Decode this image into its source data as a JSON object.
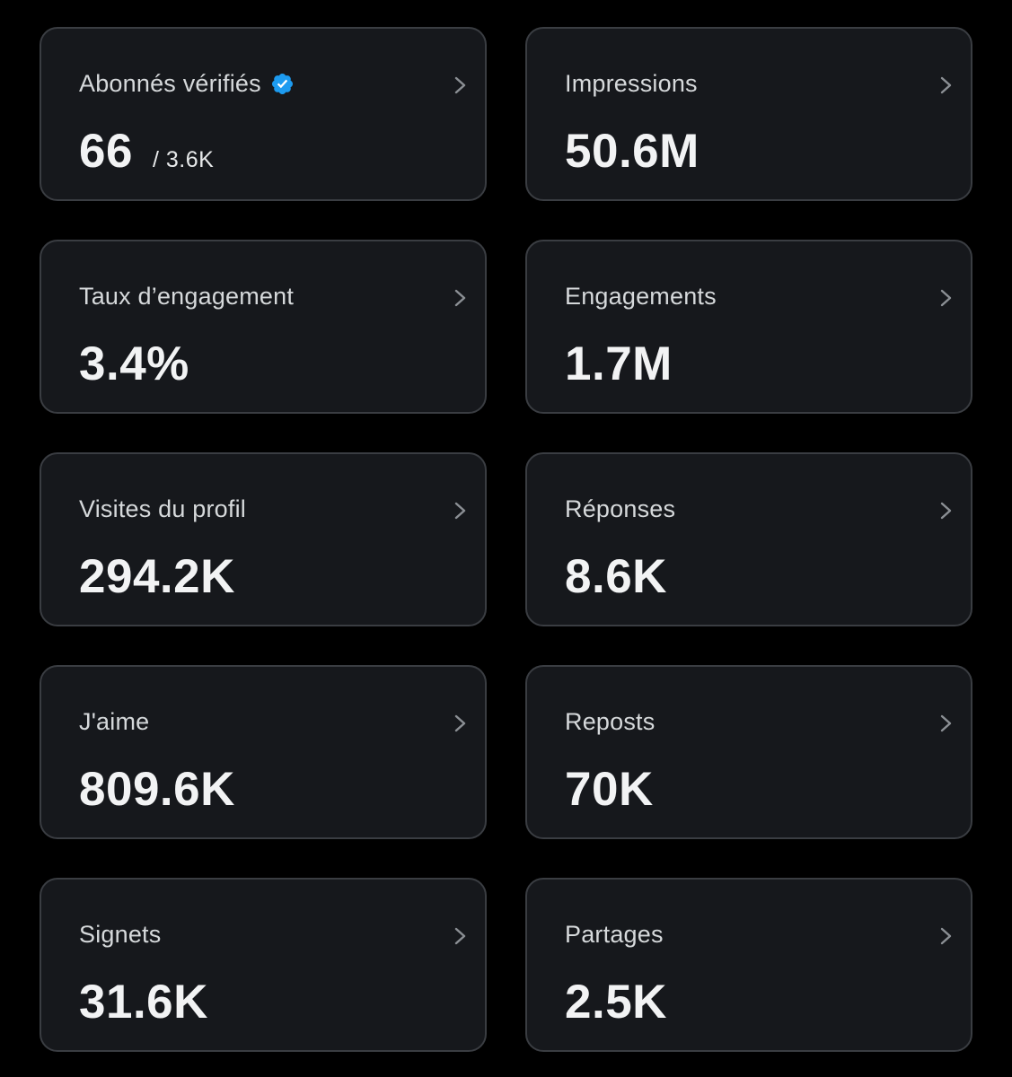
{
  "accent_color": "#1d9bf0",
  "cards": [
    {
      "label": "Abonnés vérifiés",
      "value": "66",
      "sub": "/ 3.6K",
      "icon": "verified-badge-icon"
    },
    {
      "label": "Impressions",
      "value": "50.6M"
    },
    {
      "label": "Taux d’engagement",
      "value": "3.4%"
    },
    {
      "label": "Engagements",
      "value": "1.7M"
    },
    {
      "label": "Visites du profil",
      "value": "294.2K"
    },
    {
      "label": "Réponses",
      "value": "8.6K"
    },
    {
      "label": "J'aime",
      "value": "809.6K"
    },
    {
      "label": "Reposts",
      "value": "70K"
    },
    {
      "label": "Signets",
      "value": "31.6K"
    },
    {
      "label": "Partages",
      "value": "2.5K"
    }
  ]
}
